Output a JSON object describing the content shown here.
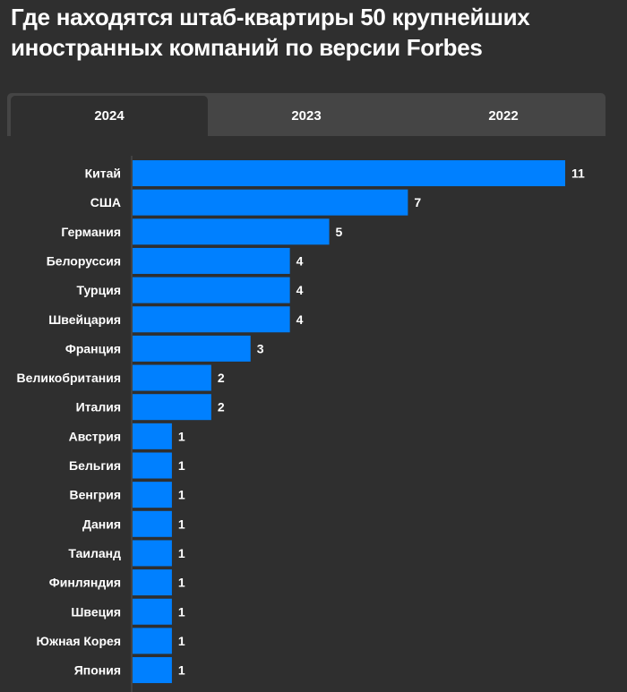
{
  "title": "Где находятся штаб-квартиры 50 крупнейших иностранных компаний по версии Forbes",
  "tabs": [
    {
      "label": "2024",
      "active": true
    },
    {
      "label": "2023",
      "active": false
    },
    {
      "label": "2022",
      "active": false
    }
  ],
  "chart_data": {
    "type": "bar",
    "orientation": "horizontal",
    "title": "Где находятся штаб-квартиры 50 крупнейших иностранных компаний по версии Forbes",
    "categories": [
      "Китай",
      "США",
      "Германия",
      "Белоруссия",
      "Турция",
      "Швейцария",
      "Франция",
      "Великобритания",
      "Италия",
      "Австрия",
      "Бельгия",
      "Венгрия",
      "Дания",
      "Таиланд",
      "Финляндия",
      "Швеция",
      "Южная Корея",
      "Япония"
    ],
    "values": [
      11,
      7,
      5,
      4,
      4,
      4,
      3,
      2,
      2,
      1,
      1,
      1,
      1,
      1,
      1,
      1,
      1,
      1
    ],
    "bar_color": "#0080ff",
    "xlim": [
      0,
      11
    ],
    "grid": false
  }
}
